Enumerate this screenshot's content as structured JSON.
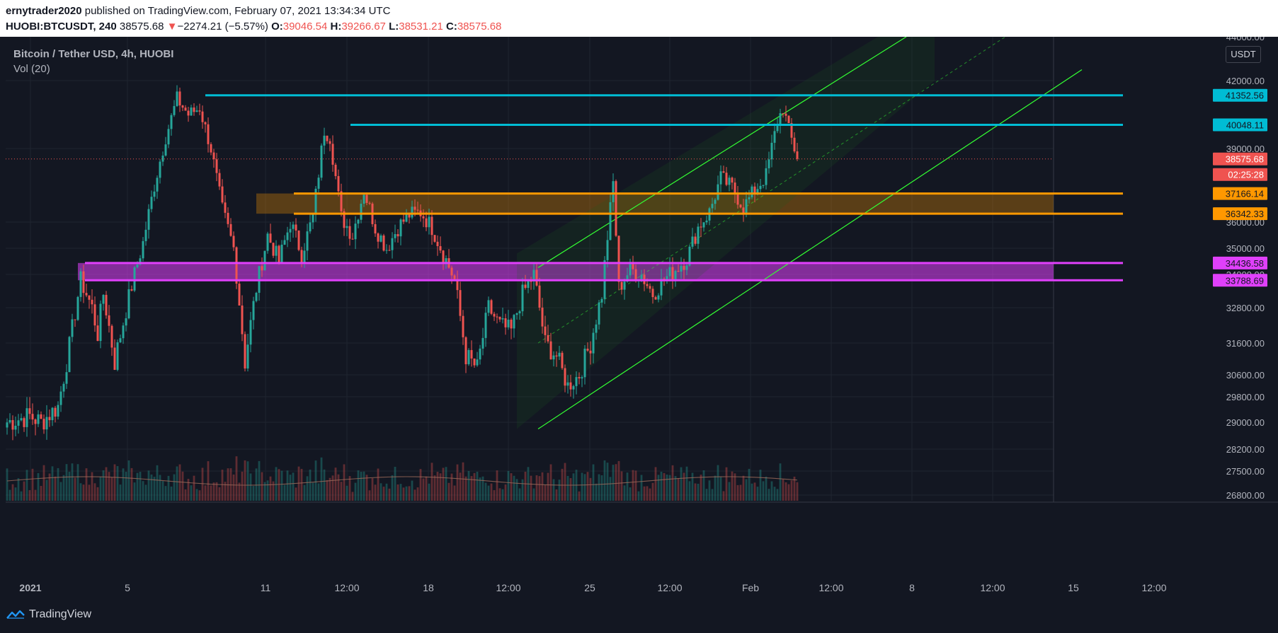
{
  "header": {
    "author": "ernytrader2020",
    "published_text": "published on TradingView.com, February 07, 2021 13:34:34 UTC",
    "symbol": "HUOBI:BTCUSDT, 240",
    "price": "38575.68",
    "change_arrow": "▼",
    "change": "−2274.21 (−5.57%)",
    "o_label": "O:",
    "o": "39046.54",
    "h_label": "H:",
    "h": "39266.67",
    "l_label": "L:",
    "l": "38531.21",
    "c_label": "C:",
    "c": "38575.68"
  },
  "legend": {
    "title": "Bitcoin / Tether USD, 4h, HUOBI",
    "volume": "Vol (20)"
  },
  "unit": "USDT",
  "brand": "TradingView",
  "colors": {
    "bg": "#131722",
    "up": "#26a69a",
    "down": "#ef5350",
    "grid": "#1f2430",
    "cyan": "#00bcd4",
    "orange": "#ff9800",
    "magenta": "#e040fb",
    "channel": "#33ff33"
  },
  "chart_data": {
    "type": "candlestick",
    "title": "Bitcoin / Tether USD, 4h, HUOBI",
    "ylim": [
      26800,
      44000
    ],
    "y_ticks": [
      "44000.00",
      "42000.00",
      "39000.00",
      "36000.00",
      "35000.00",
      "34000.00",
      "32800.00",
      "31600.00",
      "30600.00",
      "29800.00",
      "29000.00",
      "28200.00",
      "27500.00",
      "26800.00"
    ],
    "x_ticks": [
      "2021",
      "5",
      "11",
      "12:00",
      "18",
      "12:00",
      "25",
      "12:00",
      "Feb",
      "12:00",
      "8",
      "12:00",
      "15",
      "12:00"
    ],
    "price_anchors": [
      {
        "i": 0,
        "p": 29000
      },
      {
        "i": 8,
        "p": 29200
      },
      {
        "i": 12,
        "p": 29000
      },
      {
        "i": 18,
        "p": 29500
      },
      {
        "i": 22,
        "p": 31500
      },
      {
        "i": 26,
        "p": 33800
      },
      {
        "i": 30,
        "p": 32800
      },
      {
        "i": 32,
        "p": 31900
      },
      {
        "i": 34,
        "p": 33300
      },
      {
        "i": 38,
        "p": 31000
      },
      {
        "i": 44,
        "p": 33600
      },
      {
        "i": 48,
        "p": 35200
      },
      {
        "i": 52,
        "p": 37500
      },
      {
        "i": 56,
        "p": 39500
      },
      {
        "i": 60,
        "p": 41200
      },
      {
        "i": 64,
        "p": 40500
      },
      {
        "i": 68,
        "p": 40800
      },
      {
        "i": 72,
        "p": 39000
      },
      {
        "i": 76,
        "p": 36500
      },
      {
        "i": 80,
        "p": 35000
      },
      {
        "i": 84,
        "p": 31000
      },
      {
        "i": 88,
        "p": 33500
      },
      {
        "i": 92,
        "p": 35500
      },
      {
        "i": 96,
        "p": 34500
      },
      {
        "i": 100,
        "p": 36000
      },
      {
        "i": 104,
        "p": 34800
      },
      {
        "i": 108,
        "p": 36200
      },
      {
        "i": 112,
        "p": 39800
      },
      {
        "i": 114,
        "p": 39500
      },
      {
        "i": 118,
        "p": 36200
      },
      {
        "i": 122,
        "p": 35500
      },
      {
        "i": 126,
        "p": 37300
      },
      {
        "i": 130,
        "p": 35800
      },
      {
        "i": 134,
        "p": 35000
      },
      {
        "i": 138,
        "p": 35800
      },
      {
        "i": 142,
        "p": 36300
      },
      {
        "i": 146,
        "p": 36400
      },
      {
        "i": 150,
        "p": 35800
      },
      {
        "i": 154,
        "p": 34800
      },
      {
        "i": 158,
        "p": 33800
      },
      {
        "i": 162,
        "p": 31200
      },
      {
        "i": 166,
        "p": 30800
      },
      {
        "i": 170,
        "p": 32800
      },
      {
        "i": 174,
        "p": 32200
      },
      {
        "i": 178,
        "p": 32000
      },
      {
        "i": 182,
        "p": 33300
      },
      {
        "i": 186,
        "p": 34000
      },
      {
        "i": 190,
        "p": 31600
      },
      {
        "i": 194,
        "p": 31200
      },
      {
        "i": 198,
        "p": 30200
      },
      {
        "i": 202,
        "p": 30600
      },
      {
        "i": 206,
        "p": 31600
      },
      {
        "i": 210,
        "p": 33300
      },
      {
        "i": 214,
        "p": 37600
      },
      {
        "i": 216,
        "p": 33500
      },
      {
        "i": 220,
        "p": 34200
      },
      {
        "i": 224,
        "p": 34000
      },
      {
        "i": 228,
        "p": 33300
      },
      {
        "i": 232,
        "p": 33800
      },
      {
        "i": 236,
        "p": 34200
      },
      {
        "i": 240,
        "p": 34600
      },
      {
        "i": 244,
        "p": 35800
      },
      {
        "i": 248,
        "p": 36400
      },
      {
        "i": 252,
        "p": 37800
      },
      {
        "i": 256,
        "p": 37400
      },
      {
        "i": 260,
        "p": 36600
      },
      {
        "i": 264,
        "p": 37300
      },
      {
        "i": 268,
        "p": 37900
      },
      {
        "i": 272,
        "p": 40200
      },
      {
        "i": 274,
        "p": 40800
      },
      {
        "i": 276,
        "p": 39800
      },
      {
        "i": 279,
        "p": 38600
      }
    ],
    "candle_count": 280,
    "last_price": 38575.68,
    "levels": [
      {
        "price": 41352.56,
        "label": "41352.56",
        "color": "#00bcd4"
      },
      {
        "price": 40048.11,
        "label": "40048.11",
        "color": "#00bcd4"
      },
      {
        "price": 37166.14,
        "label": "37166.14",
        "color": "#ff9800"
      },
      {
        "price": 36342.33,
        "label": "36342.33",
        "color": "#ff9800"
      },
      {
        "price": 34436.58,
        "label": "34436.58",
        "color": "#e040fb"
      },
      {
        "price": 33788.69,
        "label": "33788.69",
        "color": "#e040fb"
      }
    ],
    "last_price_label": "38575.68",
    "countdown_label": "02:25:28",
    "zones": [
      {
        "from": 36342.33,
        "to": 37166.14,
        "color": "#ff9800",
        "start_index": 88
      },
      {
        "from": 33788.69,
        "to": 34436.58,
        "color": "#e040fb",
        "start_index": 25
      }
    ],
    "channel": {
      "lower": [
        {
          "i": 180,
          "p": 28800
        },
        {
          "i": 322,
          "p": 42500
        }
      ],
      "upper": [
        {
          "i": 180,
          "p": 34800
        },
        {
          "i": 270,
          "p": 44000
        }
      ]
    }
  }
}
